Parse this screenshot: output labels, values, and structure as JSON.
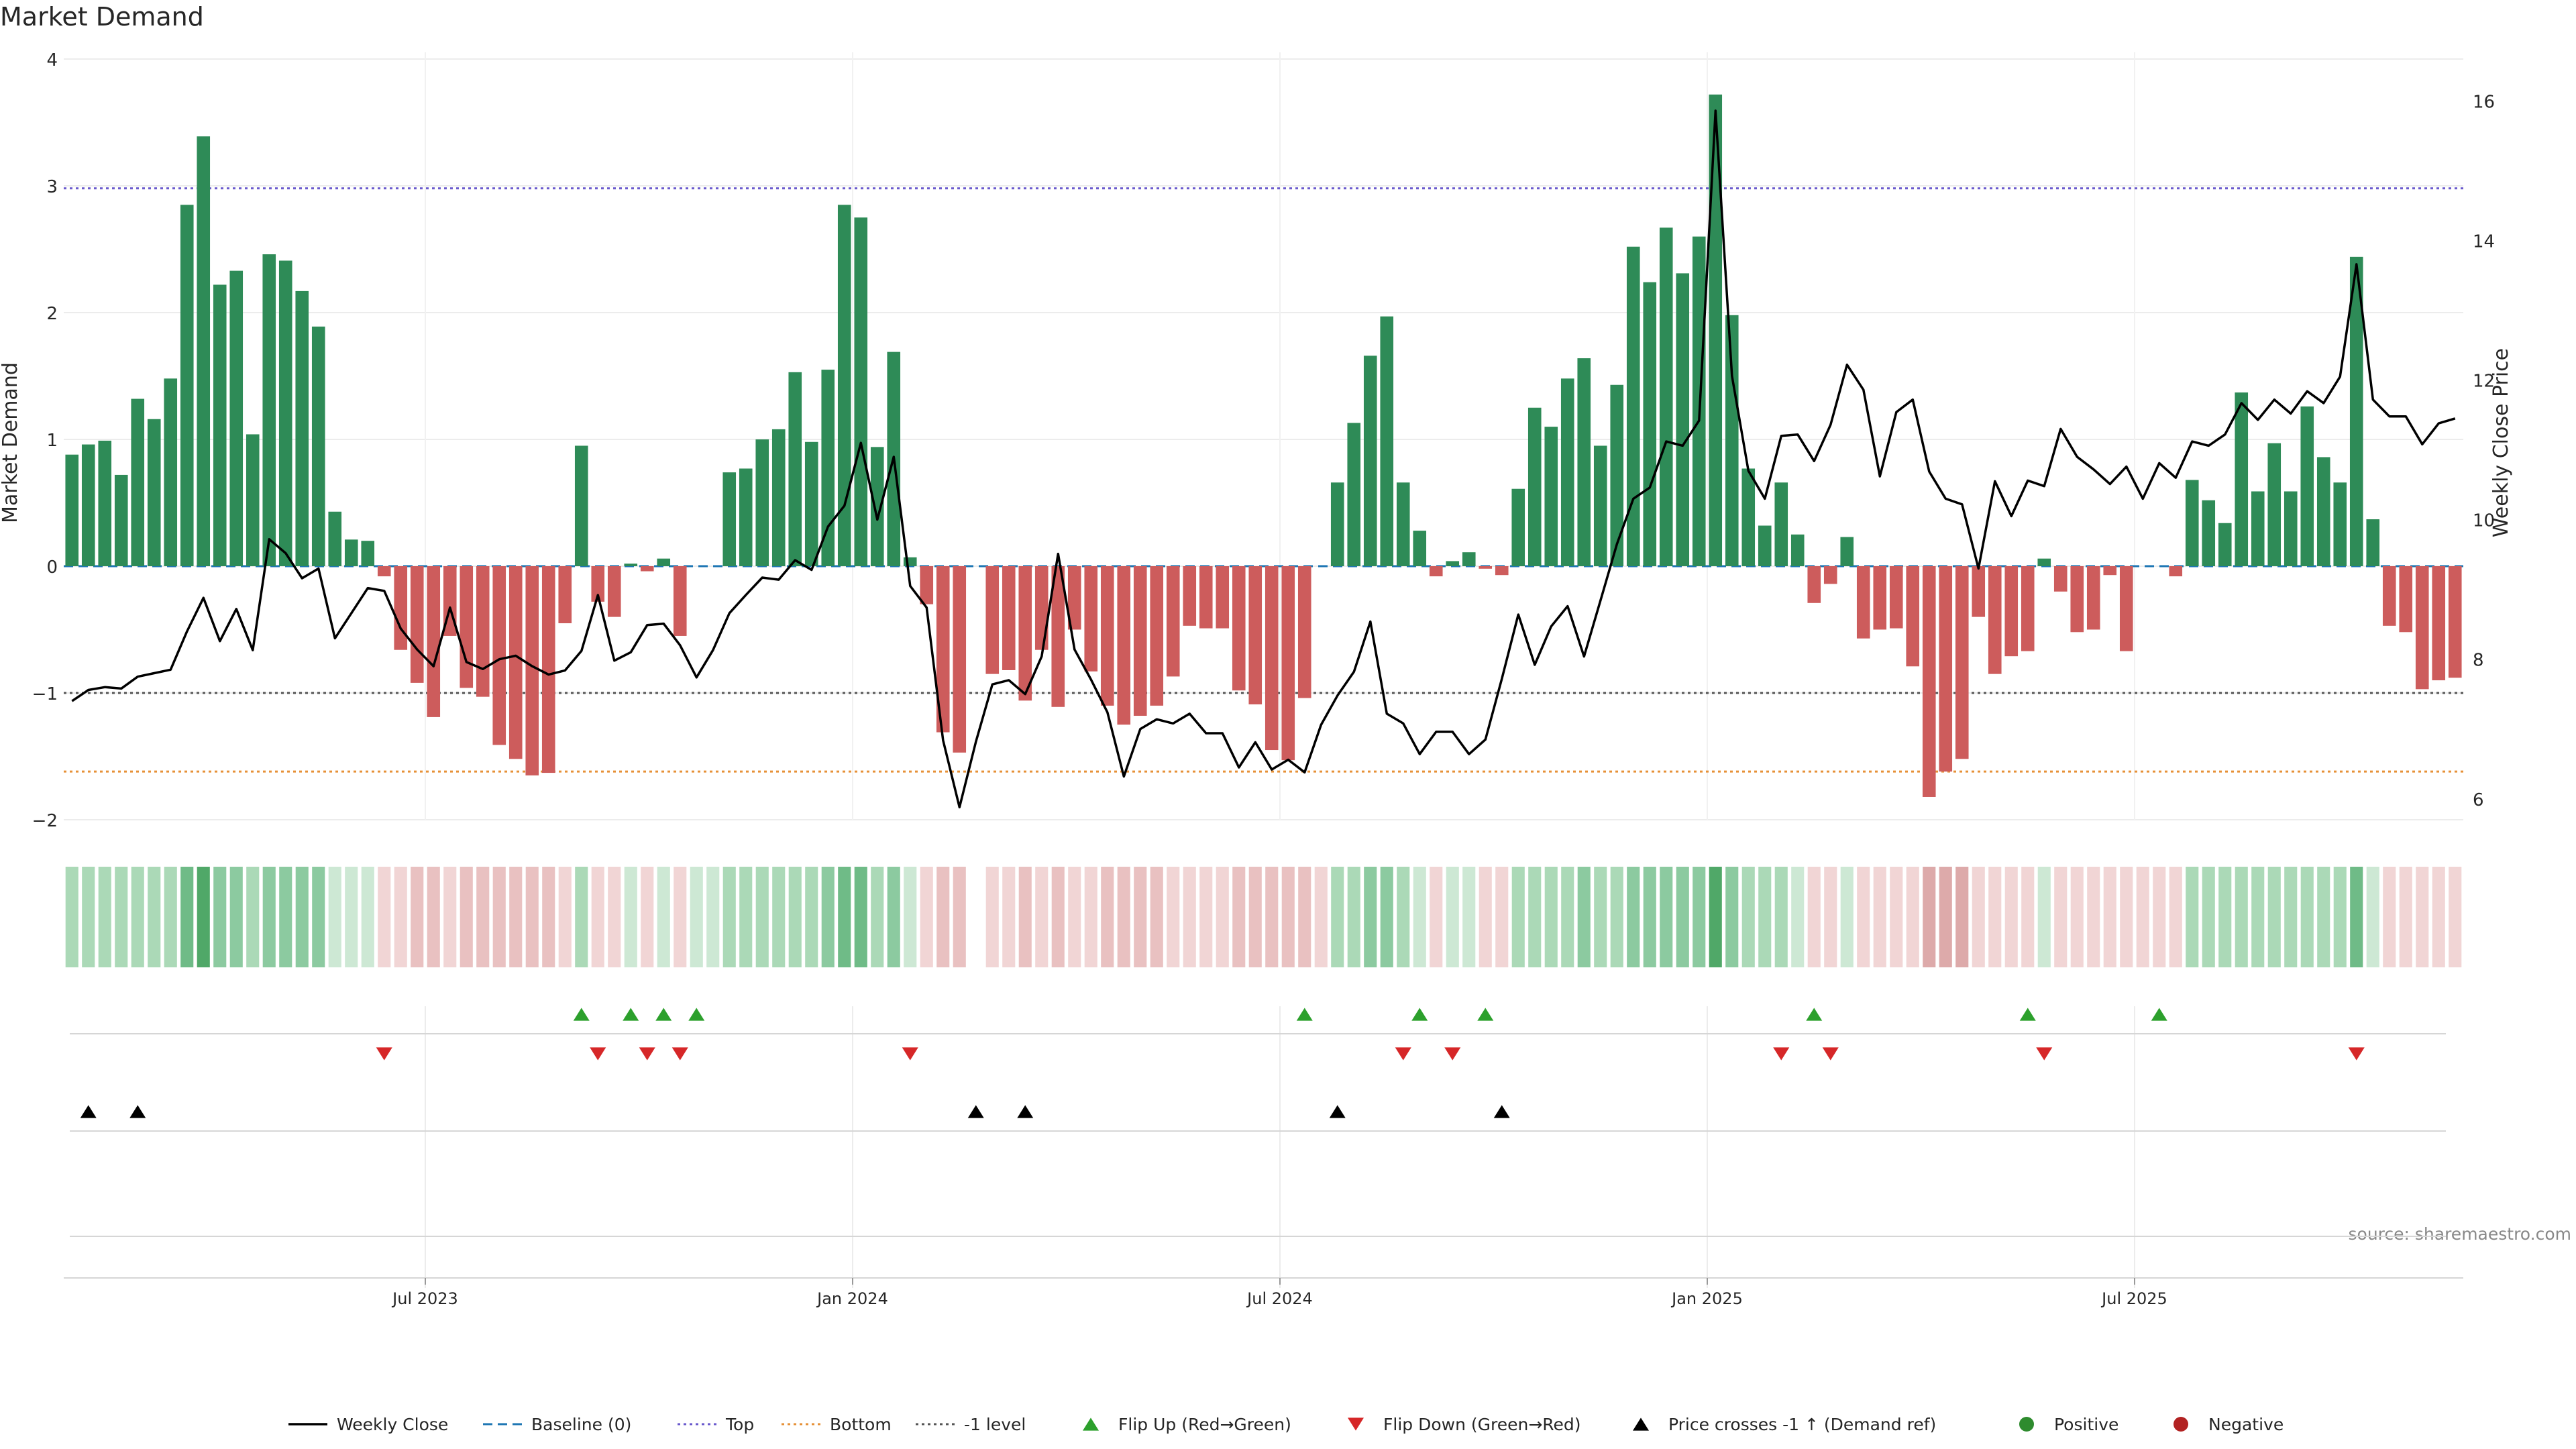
{
  "chart_data": {
    "type": "bar",
    "title": "Market Demand",
    "ylabel": "Market Demand",
    "y2label": "Weekly Close Price",
    "ylim": [
      -2,
      4
    ],
    "y2lim": [
      5.7,
      16.6
    ],
    "yticks": [
      4,
      3,
      2,
      1,
      0,
      -1,
      -2
    ],
    "y2ticks": [
      16,
      14,
      12,
      10,
      8,
      6
    ],
    "x_ticks": [
      {
        "label": "Jul 2023",
        "week": 22
      },
      {
        "label": "Jan 2024",
        "week": 48
      },
      {
        "label": "Jul 2024",
        "week": 74
      },
      {
        "label": "Jan 2025",
        "week": 100
      },
      {
        "label": "Jul 2025",
        "week": 126
      }
    ],
    "reference_lines": {
      "top": 2.98,
      "bottom": -1.62,
      "minus_one": -1.0,
      "baseline": 0
    },
    "demand": [
      0.88,
      0.96,
      0.99,
      0.72,
      1.32,
      1.16,
      1.48,
      2.85,
      3.39,
      2.22,
      2.33,
      1.04,
      2.46,
      2.41,
      2.17,
      1.89,
      0.43,
      0.21,
      0.2,
      -0.08,
      -0.66,
      -0.92,
      -1.19,
      -0.55,
      -0.96,
      -1.03,
      -1.41,
      -1.52,
      -1.65,
      -1.63,
      -0.45,
      0.95,
      -0.28,
      -0.4,
      0.02,
      -0.04,
      0.06,
      -0.55,
      0.0,
      0.0,
      0.74,
      0.77,
      1.0,
      1.08,
      1.53,
      0.98,
      1.55,
      2.85,
      2.75,
      0.94,
      1.69,
      0.07,
      -0.3,
      -1.31,
      -1.47,
      null,
      -0.85,
      -0.82,
      -1.06,
      -0.66,
      -1.11,
      -0.5,
      -0.83,
      -1.1,
      -1.25,
      -1.18,
      -1.1,
      -0.87,
      -0.47,
      -0.49,
      -0.49,
      -0.98,
      -1.09,
      -1.45,
      -1.53,
      -1.04,
      0.0,
      0.66,
      1.13,
      1.66,
      1.97,
      0.66,
      0.28,
      -0.08,
      0.04,
      0.11,
      -0.02,
      -0.07,
      0.61,
      1.25,
      1.1,
      1.48,
      1.64,
      0.95,
      1.43,
      2.52,
      2.24,
      2.67,
      2.31,
      2.6,
      3.72,
      1.98,
      0.77,
      0.32,
      0.66,
      0.25,
      -0.29,
      -0.14,
      0.23,
      -0.57,
      -0.5,
      -0.49,
      -0.79,
      -1.82,
      -1.62,
      -1.52,
      -0.4,
      -0.85,
      -0.71,
      -0.67,
      0.06,
      -0.2,
      -0.52,
      -0.5,
      -0.07,
      -0.67,
      0.0,
      0.0,
      -0.08,
      0.68,
      0.52,
      0.34,
      1.37,
      0.59,
      0.97,
      0.59,
      1.26,
      0.86,
      0.66,
      2.44,
      0.37,
      -0.47,
      -0.52,
      -0.97,
      -0.9,
      -0.88
    ],
    "weekly_close": [
      7.4,
      7.56,
      7.6,
      7.58,
      7.75,
      7.8,
      7.85,
      8.4,
      8.88,
      8.26,
      8.72,
      8.13,
      9.72,
      9.52,
      9.16,
      9.3,
      8.3,
      8.66,
      9.02,
      8.98,
      8.44,
      8.14,
      7.9,
      8.74,
      7.96,
      7.86,
      8.0,
      8.05,
      7.9,
      7.78,
      7.84,
      8.12,
      8.92,
      7.98,
      8.1,
      8.49,
      8.51,
      8.2,
      7.74,
      8.13,
      8.66,
      8.92,
      9.17,
      9.14,
      9.42,
      9.28,
      9.9,
      10.2,
      11.1,
      10.0,
      10.9,
      9.05,
      8.74,
      6.84,
      5.88,
      6.82,
      7.64,
      7.7,
      7.5,
      8.04,
      9.51,
      8.14,
      7.71,
      7.24,
      6.32,
      7.0,
      7.14,
      7.08,
      7.22,
      6.94,
      6.94,
      6.45,
      6.81,
      6.42,
      6.56,
      6.38,
      7.06,
      7.48,
      7.82,
      8.54,
      7.22,
      7.08,
      6.64,
      6.96,
      6.96,
      6.64,
      6.85,
      7.72,
      8.64,
      7.92,
      8.47,
      8.76,
      8.04,
      8.84,
      9.65,
      10.3,
      10.46,
      11.12,
      11.06,
      11.42,
      15.86,
      12.06,
      10.7,
      10.3,
      11.2,
      11.22,
      10.84,
      11.36,
      12.22,
      11.86,
      10.62,
      11.54,
      11.72,
      10.69,
      10.3,
      10.22,
      9.3,
      10.55,
      10.05,
      10.56,
      10.48,
      11.3,
      10.9,
      10.72,
      10.51,
      10.76,
      10.3,
      10.81,
      10.6,
      11.12,
      11.06,
      11.22,
      11.67,
      11.43,
      11.72,
      11.52,
      11.84,
      11.67,
      12.05,
      13.66,
      11.72,
      11.48,
      11.48,
      11.08,
      11.38,
      11.45
    ],
    "color_band": [
      {
        "sign": "pos",
        "level": 2
      },
      {
        "sign": "pos",
        "level": 2
      },
      {
        "sign": "pos",
        "level": 2
      },
      {
        "sign": "pos",
        "level": 2
      },
      {
        "sign": "pos",
        "level": 2
      },
      {
        "sign": "pos",
        "level": 2
      },
      {
        "sign": "pos",
        "level": 2
      },
      {
        "sign": "pos",
        "level": 4
      },
      {
        "sign": "pos",
        "level": 5
      },
      {
        "sign": "pos",
        "level": 3
      },
      {
        "sign": "pos",
        "level": 3
      },
      {
        "sign": "pos",
        "level": 2
      },
      {
        "sign": "pos",
        "level": 3
      },
      {
        "sign": "pos",
        "level": 3
      },
      {
        "sign": "pos",
        "level": 3
      },
      {
        "sign": "pos",
        "level": 3
      },
      {
        "sign": "pos",
        "level": 1
      },
      {
        "sign": "pos",
        "level": 1
      },
      {
        "sign": "pos",
        "level": 1
      },
      {
        "sign": "neg",
        "level": 1
      },
      {
        "sign": "neg",
        "level": 1
      },
      {
        "sign": "neg",
        "level": 2
      },
      {
        "sign": "neg",
        "level": 2
      },
      {
        "sign": "neg",
        "level": 1
      },
      {
        "sign": "neg",
        "level": 2
      },
      {
        "sign": "neg",
        "level": 2
      },
      {
        "sign": "neg",
        "level": 2
      },
      {
        "sign": "neg",
        "level": 2
      },
      {
        "sign": "neg",
        "level": 2
      },
      {
        "sign": "neg",
        "level": 2
      },
      {
        "sign": "neg",
        "level": 1
      },
      {
        "sign": "pos",
        "level": 2
      },
      {
        "sign": "neg",
        "level": 1
      },
      {
        "sign": "neg",
        "level": 1
      },
      {
        "sign": "pos",
        "level": 1
      },
      {
        "sign": "neg",
        "level": 1
      },
      {
        "sign": "pos",
        "level": 1
      },
      {
        "sign": "neg",
        "level": 1
      },
      {
        "sign": "pos",
        "level": 1
      },
      {
        "sign": "pos",
        "level": 1
      },
      {
        "sign": "pos",
        "level": 2
      },
      {
        "sign": "pos",
        "level": 2
      },
      {
        "sign": "pos",
        "level": 2
      },
      {
        "sign": "pos",
        "level": 2
      },
      {
        "sign": "pos",
        "level": 2
      },
      {
        "sign": "pos",
        "level": 2
      },
      {
        "sign": "pos",
        "level": 3
      },
      {
        "sign": "pos",
        "level": 4
      },
      {
        "sign": "pos",
        "level": 4
      },
      {
        "sign": "pos",
        "level": 2
      },
      {
        "sign": "pos",
        "level": 3
      },
      {
        "sign": "pos",
        "level": 1
      },
      {
        "sign": "neg",
        "level": 1
      },
      {
        "sign": "neg",
        "level": 2
      },
      {
        "sign": "neg",
        "level": 2
      },
      null,
      {
        "sign": "neg",
        "level": 1
      },
      {
        "sign": "neg",
        "level": 1
      },
      {
        "sign": "neg",
        "level": 2
      },
      {
        "sign": "neg",
        "level": 1
      },
      {
        "sign": "neg",
        "level": 2
      },
      {
        "sign": "neg",
        "level": 1
      },
      {
        "sign": "neg",
        "level": 1
      },
      {
        "sign": "neg",
        "level": 2
      },
      {
        "sign": "neg",
        "level": 2
      },
      {
        "sign": "neg",
        "level": 2
      },
      {
        "sign": "neg",
        "level": 2
      },
      {
        "sign": "neg",
        "level": 1
      },
      {
        "sign": "neg",
        "level": 1
      },
      {
        "sign": "neg",
        "level": 1
      },
      {
        "sign": "neg",
        "level": 1
      },
      {
        "sign": "neg",
        "level": 2
      },
      {
        "sign": "neg",
        "level": 2
      },
      {
        "sign": "neg",
        "level": 2
      },
      {
        "sign": "neg",
        "level": 2
      },
      {
        "sign": "neg",
        "level": 2
      },
      {
        "sign": "neg",
        "level": 1
      },
      {
        "sign": "pos",
        "level": 2
      },
      {
        "sign": "pos",
        "level": 2
      },
      {
        "sign": "pos",
        "level": 3
      },
      {
        "sign": "pos",
        "level": 3
      },
      {
        "sign": "pos",
        "level": 2
      },
      {
        "sign": "pos",
        "level": 1
      },
      {
        "sign": "neg",
        "level": 1
      },
      {
        "sign": "pos",
        "level": 1
      },
      {
        "sign": "pos",
        "level": 1
      },
      {
        "sign": "neg",
        "level": 1
      },
      {
        "sign": "neg",
        "level": 1
      },
      {
        "sign": "pos",
        "level": 2
      },
      {
        "sign": "pos",
        "level": 2
      },
      {
        "sign": "pos",
        "level": 2
      },
      {
        "sign": "pos",
        "level": 2
      },
      {
        "sign": "pos",
        "level": 3
      },
      {
        "sign": "pos",
        "level": 2
      },
      {
        "sign": "pos",
        "level": 2
      },
      {
        "sign": "pos",
        "level": 3
      },
      {
        "sign": "pos",
        "level": 3
      },
      {
        "sign": "pos",
        "level": 3
      },
      {
        "sign": "pos",
        "level": 3
      },
      {
        "sign": "pos",
        "level": 3
      },
      {
        "sign": "pos",
        "level": 5
      },
      {
        "sign": "pos",
        "level": 3
      },
      {
        "sign": "pos",
        "level": 2
      },
      {
        "sign": "pos",
        "level": 2
      },
      {
        "sign": "pos",
        "level": 2
      },
      {
        "sign": "pos",
        "level": 1
      },
      {
        "sign": "neg",
        "level": 1
      },
      {
        "sign": "neg",
        "level": 1
      },
      {
        "sign": "pos",
        "level": 1
      },
      {
        "sign": "neg",
        "level": 1
      },
      {
        "sign": "neg",
        "level": 1
      },
      {
        "sign": "neg",
        "level": 1
      },
      {
        "sign": "neg",
        "level": 1
      },
      {
        "sign": "neg",
        "level": 3
      },
      {
        "sign": "neg",
        "level": 3
      },
      {
        "sign": "neg",
        "level": 3
      },
      {
        "sign": "neg",
        "level": 1
      },
      {
        "sign": "neg",
        "level": 1
      },
      {
        "sign": "neg",
        "level": 1
      },
      {
        "sign": "neg",
        "level": 1
      },
      {
        "sign": "pos",
        "level": 1
      },
      {
        "sign": "neg",
        "level": 1
      },
      {
        "sign": "neg",
        "level": 1
      },
      {
        "sign": "neg",
        "level": 1
      },
      {
        "sign": "neg",
        "level": 1
      },
      {
        "sign": "neg",
        "level": 1
      },
      {
        "sign": "neg",
        "level": 1
      },
      {
        "sign": "neg",
        "level": 1
      },
      {
        "sign": "neg",
        "level": 1
      },
      {
        "sign": "pos",
        "level": 2
      },
      {
        "sign": "pos",
        "level": 2
      },
      {
        "sign": "pos",
        "level": 2
      },
      {
        "sign": "pos",
        "level": 2
      },
      {
        "sign": "pos",
        "level": 2
      },
      {
        "sign": "pos",
        "level": 2
      },
      {
        "sign": "pos",
        "level": 2
      },
      {
        "sign": "pos",
        "level": 2
      },
      {
        "sign": "pos",
        "level": 2
      },
      {
        "sign": "pos",
        "level": 2
      },
      {
        "sign": "pos",
        "level": 4
      },
      {
        "sign": "pos",
        "level": 1
      },
      {
        "sign": "neg",
        "level": 1
      },
      {
        "sign": "neg",
        "level": 1
      },
      {
        "sign": "neg",
        "level": 1
      },
      {
        "sign": "neg",
        "level": 1
      },
      {
        "sign": "neg",
        "level": 1
      }
    ],
    "flip_up_weeks": [
      31,
      34,
      36,
      38,
      75,
      82,
      86,
      106,
      119,
      127
    ],
    "flip_down_weeks": [
      19,
      32,
      35,
      37,
      51,
      81,
      84,
      104,
      107,
      120,
      139
    ],
    "price_cross_weeks": [
      1,
      4,
      55,
      58,
      77,
      87
    ],
    "legend": [
      {
        "label": "Weekly Close",
        "kind": "line"
      },
      {
        "label": "Baseline (0)",
        "kind": "dash"
      },
      {
        "label": "Top",
        "kind": "dot-blue"
      },
      {
        "label": "Bottom",
        "kind": "dot-orange"
      },
      {
        "label": "-1 level",
        "kind": "dot-grey"
      },
      {
        "label": "Flip Up (Red→Green)",
        "kind": "tri-up-green"
      },
      {
        "label": "Flip Down (Green→Red)",
        "kind": "tri-down-red"
      },
      {
        "label": "Price crosses -1 ↑ (Demand ref)",
        "kind": "tri-up-black"
      },
      {
        "label": "Positive",
        "kind": "dot-green"
      },
      {
        "label": "Negative",
        "kind": "dot-red"
      }
    ],
    "source": "source: sharemaestro.com",
    "colors": {
      "pos_bar": "#2e8b57",
      "neg_bar": "#cd5c5c",
      "price_line": "#000000",
      "baseline": "#1f77b4",
      "top_line": "#6a5acd",
      "bottom_line": "#e69138",
      "minus_one_line": "#555555",
      "flip_up": "#2ca02c",
      "flip_down": "#d62728",
      "cross": "#000000",
      "positive_dot": "#2e8b2e",
      "negative_dot": "#b22222"
    }
  }
}
